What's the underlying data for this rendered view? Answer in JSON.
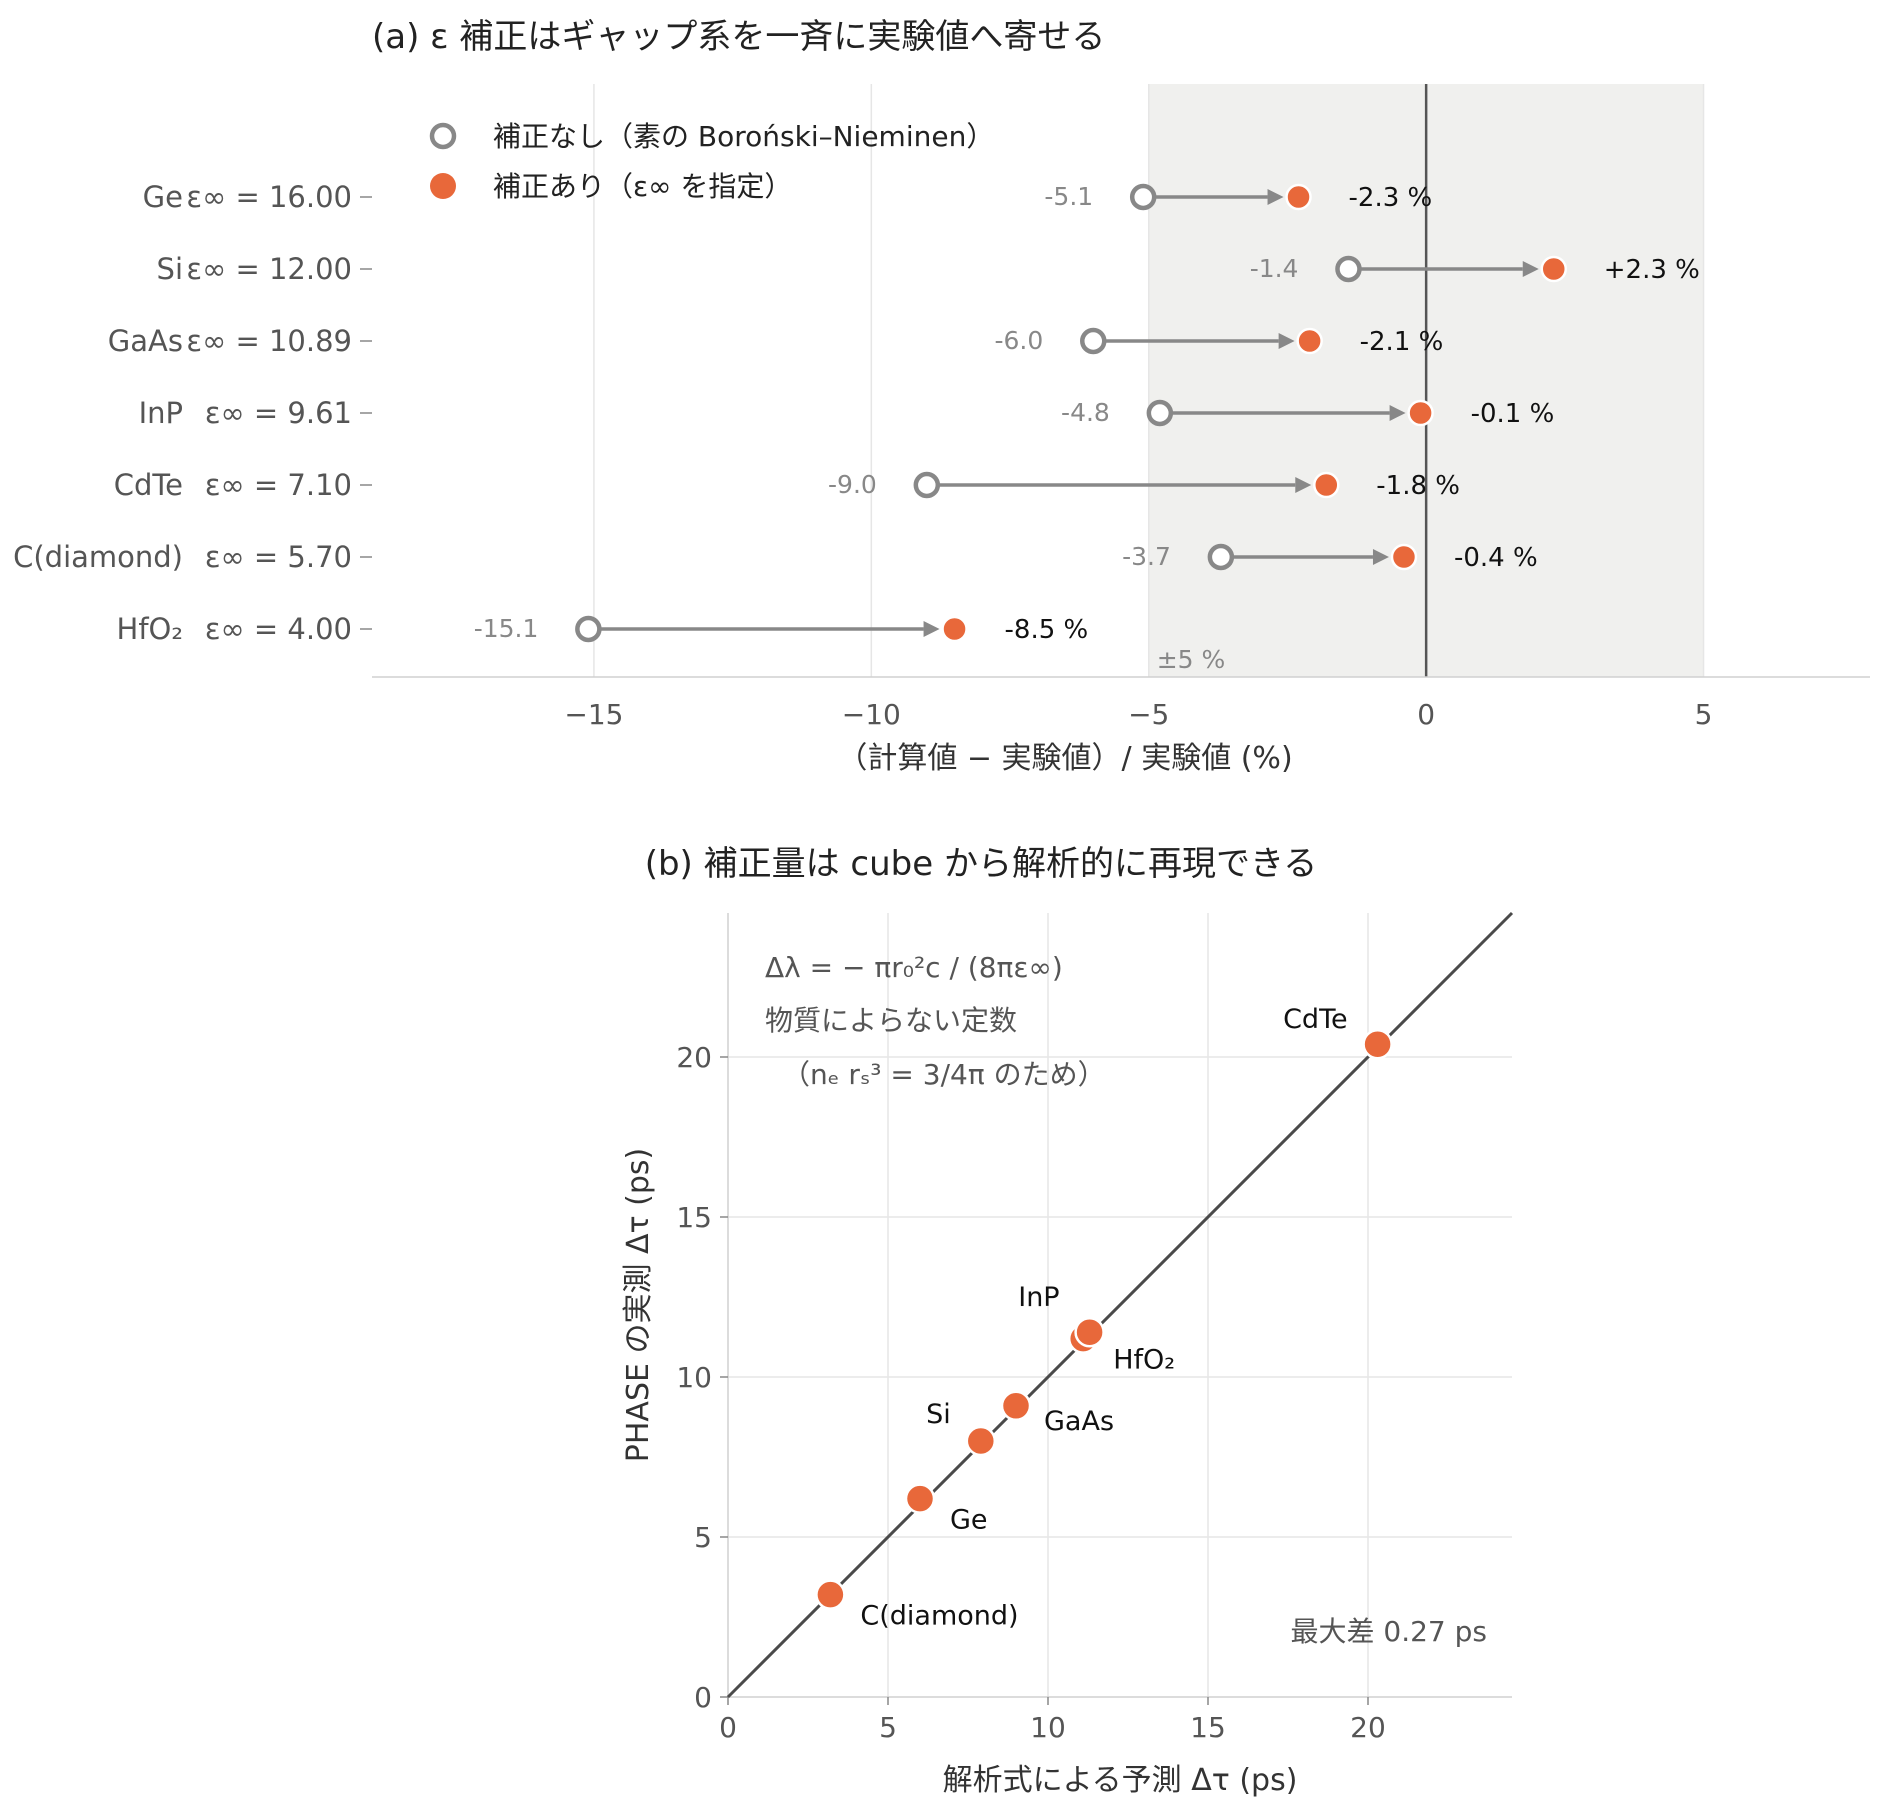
{
  "colors": {
    "before": "#888888",
    "after": "#e8683a",
    "band": "#f0f0ee",
    "zero_line": "#555555",
    "identity_line": "#4a4a4a"
  },
  "panel_a": {
    "title": "(a) ε 補正はギャップ系を一斉に実験値へ寄せる",
    "xlabel": "（計算値 − 実験値）/ 実験値 (%)",
    "band_label": "±5 %",
    "xticks": [
      "−15",
      "−10",
      "−5",
      "0",
      "5"
    ],
    "legend": {
      "before": "補正なし（素の Boroński–Nieminen）",
      "after": "補正あり（ε∞ を指定）"
    },
    "rows": [
      {
        "name": "Ge",
        "eps": "ε∞ = 16.00",
        "before": -5.1,
        "after": -2.3,
        "before_label": "-5.1",
        "after_label": "-2.3 %"
      },
      {
        "name": "Si",
        "eps": "ε∞ = 12.00",
        "before": -1.4,
        "after": 2.3,
        "before_label": "-1.4",
        "after_label": "+2.3 %"
      },
      {
        "name": "GaAs",
        "eps": "ε∞ = 10.89",
        "before": -6.0,
        "after": -2.1,
        "before_label": "-6.0",
        "after_label": "-2.1 %"
      },
      {
        "name": "InP",
        "eps": "ε∞ = 9.61",
        "before": -4.8,
        "after": -0.1,
        "before_label": "-4.8",
        "after_label": "-0.1 %"
      },
      {
        "name": "CdTe",
        "eps": "ε∞ = 7.10",
        "before": -9.0,
        "after": -1.8,
        "before_label": "-9.0",
        "after_label": "-1.8 %"
      },
      {
        "name": "C(diamond)",
        "eps": "ε∞ = 5.70",
        "before": -3.7,
        "after": -0.4,
        "before_label": "-3.7",
        "after_label": "-0.4 %"
      },
      {
        "name": "HfO₂",
        "eps": "ε∞ = 4.00",
        "before": -15.1,
        "after": -8.5,
        "before_label": "-15.1",
        "after_label": "-8.5 %"
      }
    ]
  },
  "panel_b": {
    "title": "(b) 補正量は cube から解析的に再現できる",
    "xlabel": "解析式による予測 Δτ (ps)",
    "ylabel": "PHASE の実測 Δτ (ps)",
    "xticks": [
      "0",
      "5",
      "10",
      "15",
      "20"
    ],
    "yticks": [
      "0",
      "5",
      "10",
      "15",
      "20"
    ],
    "annotation_formula": "Δλ = − πr₀²c / (8πε∞)",
    "annotation_line2": "物質によらない定数",
    "annotation_line3": "（nₑ rₛ³ = 3/4π のため）",
    "max_diff": "最大差 0.27 ps"
  },
  "chart_data": [
    {
      "type": "dumbbell",
      "title": "(a) ε 補正はギャップ系を一斉に実験値へ寄せる",
      "xlabel": "（計算値 − 実験値）/ 実験値 (%)",
      "xlim": [
        -19,
        8
      ],
      "shaded_band": [
        -5,
        5
      ],
      "categories": [
        "Ge",
        "Si",
        "GaAs",
        "InP",
        "CdTe",
        "C(diamond)",
        "HfO₂"
      ],
      "series": [
        {
          "name": "補正なし（素の Boroński–Nieminen）",
          "values": [
            -5.1,
            -1.4,
            -6.0,
            -4.8,
            -9.0,
            -3.7,
            -15.1
          ]
        },
        {
          "name": "補正あり（ε∞ を指定）",
          "values": [
            -2.3,
            2.3,
            -2.1,
            -0.1,
            -1.8,
            -0.4,
            -8.5
          ]
        }
      ],
      "eps_inf": [
        16.0,
        12.0,
        10.89,
        9.61,
        7.1,
        5.7,
        4.0
      ]
    },
    {
      "type": "scatter",
      "title": "(b) 補正量は cube から解析的に再現できる",
      "xlabel": "解析式による予測 Δτ (ps)",
      "ylabel": "PHASE の実測 Δτ (ps)",
      "xlim": [
        0,
        24.5
      ],
      "ylim": [
        0,
        24.5
      ],
      "identity_line": true,
      "points": [
        {
          "label": "C(diamond)",
          "x": 3.2,
          "y": 3.2
        },
        {
          "label": "Ge",
          "x": 6.0,
          "y": 6.2
        },
        {
          "label": "Si",
          "x": 7.9,
          "y": 8.0
        },
        {
          "label": "GaAs",
          "x": 9.0,
          "y": 9.1
        },
        {
          "label": "HfO₂",
          "x": 11.1,
          "y": 11.2
        },
        {
          "label": "InP",
          "x": 11.3,
          "y": 11.4
        },
        {
          "label": "CdTe",
          "x": 20.3,
          "y": 20.4
        }
      ]
    }
  ]
}
